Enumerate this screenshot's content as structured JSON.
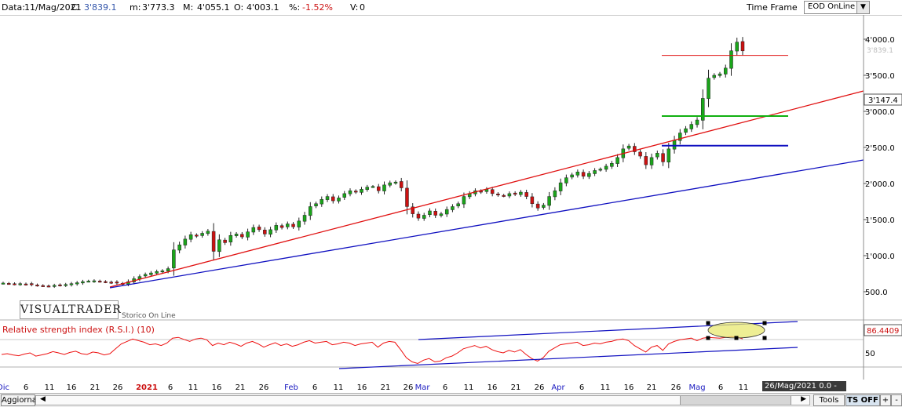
{
  "header": {
    "data_label": "Data:",
    "date": "11/Mag/2021",
    "close_label": "C:",
    "close": "3'839.1",
    "min_label": "m:",
    "min": "3'773.3",
    "max_label": "M:",
    "max": "4'055.1",
    "open_label": "O:",
    "open": "4'003.1",
    "pct_label": "%:",
    "pct": "-1.52%",
    "vol_label": "V:",
    "vol": "0",
    "timeframe_label": "Time Frame",
    "timeframe_value": "EOD OnLine"
  },
  "colors": {
    "up_candle": "#1aa51a",
    "down_candle": "#cc1111",
    "trend_red": "#e01010",
    "trend_blue": "#1010c0",
    "level_green": "#10b010",
    "rsi_line": "#ee1111"
  },
  "branding": {
    "logo": "VISUALTRADER",
    "tagline": "Storico On Line"
  },
  "chart_data": {
    "type": "candlestick",
    "symbol_period": "EOD",
    "y_ticks": [
      "4'000.0",
      "3'500.0",
      "3'000.0",
      "2'500.0",
      "2'000.0",
      "1'500.0",
      "1'000.0",
      "500.0"
    ],
    "ylim": [
      400,
      4400
    ],
    "last_price_label": "3'839.1",
    "marker_label": "3'147.4",
    "x_ticks": [
      "Dic",
      "6",
      "11",
      "16",
      "21",
      "26",
      "2021",
      "6",
      "11",
      "16",
      "21",
      "26",
      "Feb",
      "6",
      "11",
      "16",
      "21",
      "26",
      "Mar",
      "6",
      "11",
      "16",
      "21",
      "26",
      "Apr",
      "6",
      "11",
      "16",
      "21",
      "26",
      "Mag",
      "6",
      "11"
    ],
    "close_series": [
      620,
      615,
      608,
      612,
      605,
      598,
      590,
      585,
      580,
      588,
      592,
      600,
      612,
      625,
      640,
      648,
      652,
      645,
      638,
      628,
      620,
      610,
      640,
      680,
      710,
      740,
      760,
      780,
      790,
      820,
      1080,
      1150,
      1230,
      1290,
      1270,
      1310,
      1340,
      1060,
      1220,
      1180,
      1280,
      1300,
      1260,
      1330,
      1390,
      1360,
      1300,
      1360,
      1420,
      1390,
      1440,
      1400,
      1480,
      1560,
      1680,
      1720,
      1780,
      1820,
      1760,
      1800,
      1860,
      1900,
      1880,
      1920,
      1950,
      1960,
      1900,
      1980,
      2010,
      2020,
      1940,
      1680,
      1580,
      1520,
      1560,
      1620,
      1560,
      1580,
      1640,
      1680,
      1720,
      1820,
      1860,
      1900,
      1880,
      1920,
      1860,
      1840,
      1830,
      1860,
      1850,
      1880,
      1820,
      1720,
      1660,
      1700,
      1820,
      1900,
      2010,
      2080,
      2120,
      2160,
      2100,
      2140,
      2180,
      2200,
      2240,
      2280,
      2360,
      2480,
      2520,
      2440,
      2380,
      2260,
      2360,
      2420,
      2300,
      2480,
      2600,
      2700,
      2760,
      2820,
      2880,
      3180,
      3460,
      3500,
      3520,
      3600,
      3840,
      3960,
      3839.1
    ],
    "horizontal_levels": [
      {
        "value": 3776,
        "color": "red"
      },
      {
        "value": 2935,
        "color": "green"
      },
      {
        "value": 2525,
        "color": "blue"
      }
    ],
    "indicator": {
      "name": "Relative strength index (R.S.I.) (10)",
      "last_value_label": "86.4409",
      "ylim": [
        20,
        100
      ],
      "y_ticks": [
        "50"
      ],
      "values": [
        48,
        50,
        47,
        45,
        49,
        52,
        44,
        47,
        50,
        55,
        52,
        48,
        53,
        56,
        50,
        48,
        54,
        52,
        47,
        50,
        62,
        74,
        80,
        86,
        82,
        78,
        72,
        74,
        70,
        76,
        88,
        90,
        85,
        80,
        86,
        88,
        84,
        70,
        76,
        72,
        78,
        74,
        68,
        76,
        80,
        74,
        66,
        72,
        77,
        70,
        74,
        68,
        72,
        78,
        82,
        76,
        78,
        80,
        72,
        74,
        78,
        76,
        70,
        74,
        76,
        78,
        66,
        76,
        80,
        78,
        60,
        40,
        30,
        26,
        34,
        38,
        30,
        32,
        40,
        44,
        52,
        62,
        66,
        70,
        64,
        68,
        60,
        55,
        52,
        58,
        54,
        60,
        48,
        38,
        32,
        40,
        56,
        64,
        72,
        74,
        76,
        78,
        70,
        72,
        76,
        74,
        78,
        80,
        84,
        86,
        82,
        70,
        62,
        54,
        66,
        70,
        58,
        74,
        80,
        84,
        86,
        88,
        82,
        88,
        90,
        89,
        88,
        90,
        92,
        91,
        86.44
      ]
    }
  },
  "footer": {
    "refresh_button": "Aggiorna",
    "date_flag": "26/Mag/2021 0.0  -",
    "tools_button": "Tools",
    "ts_button": "TS OFF",
    "plus_button": "+",
    "minus_button": "-"
  }
}
